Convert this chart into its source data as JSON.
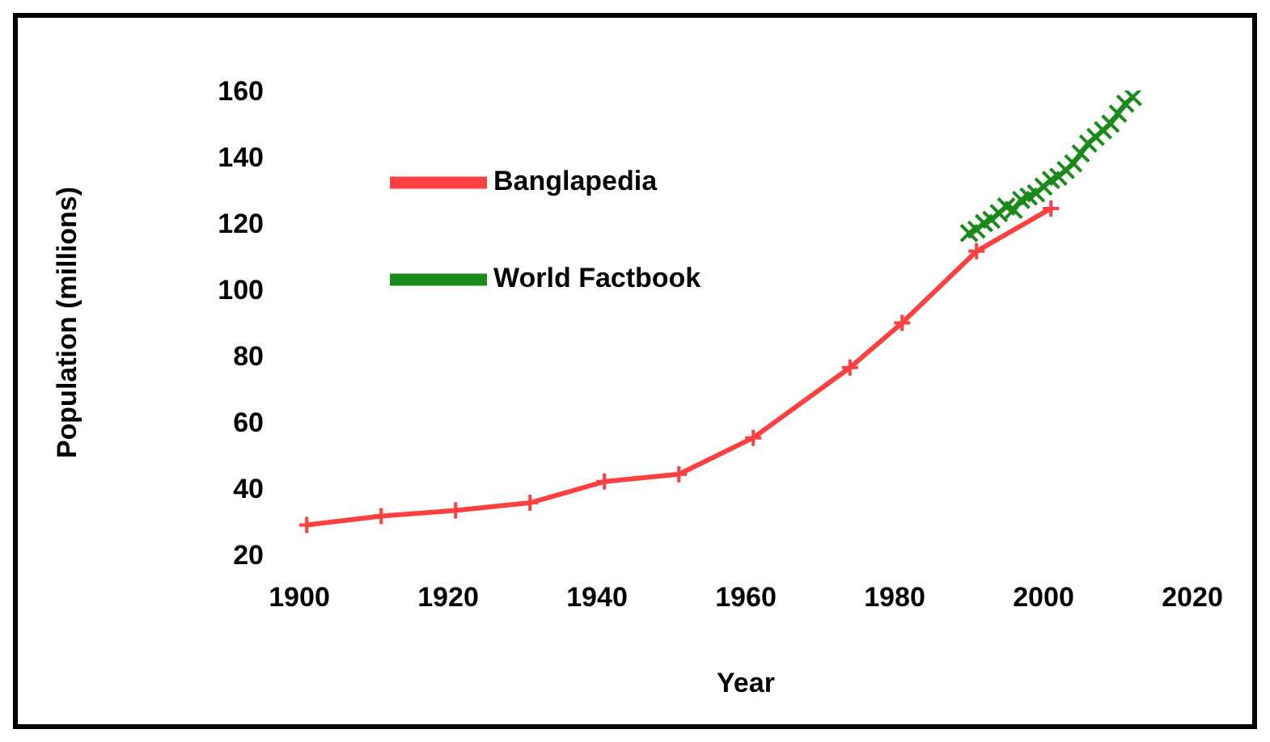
{
  "chart_data": {
    "type": "line",
    "xlabel": "Year",
    "ylabel": "Population (millions)",
    "xlim": [
      1900,
      2020
    ],
    "xticks": [
      1900,
      1920,
      1940,
      1960,
      1980,
      2000,
      2020
    ],
    "ylim": [
      20,
      160
    ],
    "yticks": [
      20,
      40,
      60,
      80,
      100,
      120,
      140,
      160
    ],
    "grid": false,
    "legend": "top left",
    "series": [
      {
        "name": "Banglapedia",
        "color": "#ff4040",
        "marker": "cross",
        "x": [
          1901,
          1911,
          1921,
          1931,
          1941,
          1951,
          1961,
          1974,
          1981,
          1991,
          2001
        ],
        "values": [
          28.9,
          31.6,
          33.3,
          35.6,
          42.0,
          44.2,
          55.2,
          76.4,
          89.9,
          111.5,
          124.4
        ]
      },
      {
        "name": "World Factbook",
        "color": "#1a8a1a",
        "marker": "x",
        "x": [
          1990,
          1991,
          1992,
          1993,
          1994,
          1995,
          1996,
          1997,
          1998,
          1999,
          2000,
          2001,
          2002,
          2003,
          2004,
          2005,
          2006,
          2007,
          2008,
          2009,
          2010,
          2011,
          2012
        ],
        "values": [
          117,
          118,
          120,
          121,
          123,
          125,
          124,
          127,
          128,
          129,
          131,
          133,
          134,
          136,
          138,
          141,
          144,
          146,
          148,
          150,
          153,
          156,
          158
        ]
      }
    ]
  }
}
